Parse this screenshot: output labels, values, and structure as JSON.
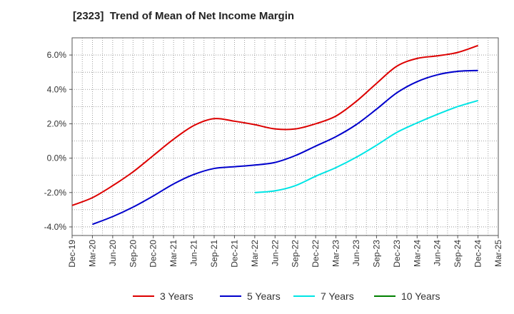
{
  "chart_data": {
    "type": "line",
    "title": "[2323]  Trend of Mean of Net Income Margin",
    "xlabel": "",
    "ylabel": "",
    "categories": [
      "Dec-19",
      "Mar-20",
      "Jun-20",
      "Sep-20",
      "Dec-20",
      "Mar-21",
      "Jun-21",
      "Sep-21",
      "Dec-21",
      "Mar-22",
      "Jun-22",
      "Sep-22",
      "Dec-22",
      "Mar-23",
      "Jun-23",
      "Sep-23",
      "Dec-23",
      "Mar-24",
      "Jun-24",
      "Sep-24",
      "Dec-24",
      "Mar-25"
    ],
    "ylim": [
      -4.5,
      7.0
    ],
    "yticks": [
      -4.0,
      -2.0,
      0.0,
      2.0,
      4.0,
      6.0
    ],
    "ytick_labels": [
      "-4.0%",
      "-2.0%",
      "0.0%",
      "2.0%",
      "4.0%",
      "6.0%"
    ],
    "grid": true,
    "legend_position": "bottom",
    "series": [
      {
        "name": "3 Years",
        "color": "#dd0000",
        "values": [
          -2.75,
          -2.3,
          -1.6,
          -0.8,
          0.15,
          1.1,
          1.9,
          2.3,
          2.15,
          1.95,
          1.7,
          1.7,
          2.0,
          2.45,
          3.3,
          4.35,
          5.35,
          5.8,
          5.95,
          6.15,
          6.55,
          null
        ]
      },
      {
        "name": "5 Years",
        "color": "#0000cc",
        "values": [
          null,
          -3.85,
          -3.4,
          -2.85,
          -2.2,
          -1.5,
          -0.95,
          -0.6,
          -0.5,
          -0.4,
          -0.25,
          0.15,
          0.7,
          1.25,
          1.95,
          2.85,
          3.8,
          4.45,
          4.85,
          5.05,
          5.1,
          null
        ]
      },
      {
        "name": "7 Years",
        "color": "#00e5e5",
        "values": [
          null,
          null,
          null,
          null,
          null,
          null,
          null,
          null,
          null,
          -2.0,
          -1.9,
          -1.6,
          -1.05,
          -0.55,
          0.05,
          0.75,
          1.5,
          2.05,
          2.55,
          3.0,
          3.35,
          null
        ]
      },
      {
        "name": "10 Years",
        "color": "#008000",
        "values": [
          null,
          null,
          null,
          null,
          null,
          null,
          null,
          null,
          null,
          null,
          null,
          null,
          null,
          null,
          null,
          null,
          null,
          null,
          null,
          null,
          null,
          null
        ]
      }
    ]
  }
}
